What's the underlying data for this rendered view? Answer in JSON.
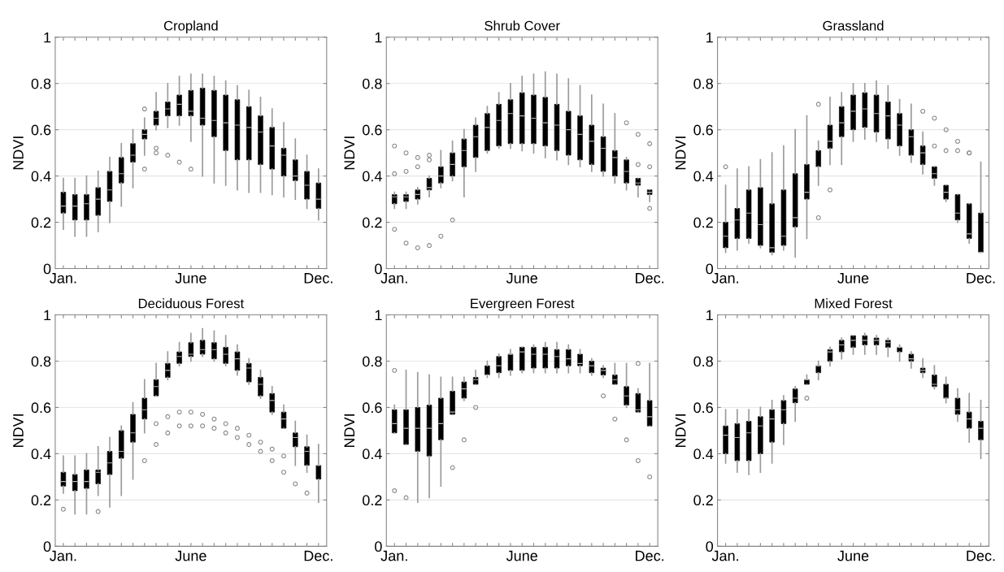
{
  "chart_data": [
    {
      "type": "box",
      "title": "Cropland",
      "ylabel": "NDVI",
      "categories": [
        "Jan.",
        null,
        null,
        null,
        null,
        null,
        null,
        null,
        null,
        null,
        null,
        "June",
        null,
        null,
        null,
        null,
        null,
        null,
        null,
        null,
        null,
        null,
        "Dec."
      ],
      "ylim": [
        0,
        1
      ],
      "yticks": [
        0,
        0.2,
        0.4,
        0.6,
        0.8,
        1
      ],
      "grid": "y",
      "boxes": [
        {
          "low": 0.17,
          "q1": 0.24,
          "median": 0.27,
          "q3": 0.33,
          "high": 0.39
        },
        {
          "low": 0.14,
          "q1": 0.21,
          "median": 0.27,
          "q3": 0.32,
          "high": 0.39
        },
        {
          "low": 0.14,
          "q1": 0.21,
          "median": 0.28,
          "q3": 0.32,
          "high": 0.4
        },
        {
          "low": 0.16,
          "q1": 0.23,
          "median": 0.3,
          "q3": 0.35,
          "high": 0.42
        },
        {
          "low": 0.2,
          "q1": 0.29,
          "median": 0.34,
          "q3": 0.42,
          "high": 0.48
        },
        {
          "low": 0.27,
          "q1": 0.37,
          "median": 0.41,
          "q3": 0.48,
          "high": 0.54
        },
        {
          "low": 0.35,
          "q1": 0.46,
          "median": 0.49,
          "q3": 0.54,
          "high": 0.6
        },
        {
          "low": 0.49,
          "q1": 0.56,
          "median": 0.58,
          "q3": 0.6,
          "high": 0.65,
          "outliers": [
            0.69,
            0.43
          ]
        },
        {
          "low": 0.6,
          "q1": 0.62,
          "median": 0.65,
          "q3": 0.68,
          "high": 0.76,
          "outliers": [
            0.52,
            0.5
          ]
        },
        {
          "low": 0.61,
          "q1": 0.66,
          "median": 0.69,
          "q3": 0.72,
          "high": 0.8,
          "outliers": [
            0.49
          ]
        },
        {
          "low": 0.62,
          "q1": 0.66,
          "median": 0.71,
          "q3": 0.75,
          "high": 0.83,
          "outliers": [
            0.46
          ]
        },
        {
          "low": 0.55,
          "q1": 0.66,
          "median": 0.68,
          "q3": 0.77,
          "high": 0.84,
          "outliers": [
            0.43
          ]
        },
        {
          "low": 0.4,
          "q1": 0.62,
          "median": 0.65,
          "q3": 0.78,
          "high": 0.84
        },
        {
          "low": 0.37,
          "q1": 0.57,
          "median": 0.64,
          "q3": 0.77,
          "high": 0.83
        },
        {
          "low": 0.36,
          "q1": 0.51,
          "median": 0.63,
          "q3": 0.75,
          "high": 0.81
        },
        {
          "low": 0.34,
          "q1": 0.47,
          "median": 0.62,
          "q3": 0.73,
          "high": 0.79
        },
        {
          "low": 0.33,
          "q1": 0.47,
          "median": 0.61,
          "q3": 0.7,
          "high": 0.77
        },
        {
          "low": 0.33,
          "q1": 0.45,
          "median": 0.59,
          "q3": 0.66,
          "high": 0.74
        },
        {
          "low": 0.32,
          "q1": 0.43,
          "median": 0.53,
          "q3": 0.61,
          "high": 0.69
        },
        {
          "low": 0.31,
          "q1": 0.4,
          "median": 0.49,
          "q3": 0.52,
          "high": 0.63
        },
        {
          "low": 0.3,
          "q1": 0.38,
          "median": 0.4,
          "q3": 0.47,
          "high": 0.56
        },
        {
          "low": 0.26,
          "q1": 0.3,
          "median": 0.36,
          "q3": 0.42,
          "high": 0.49
        },
        {
          "low": 0.21,
          "q1": 0.26,
          "median": 0.3,
          "q3": 0.37,
          "high": 0.43
        }
      ]
    },
    {
      "type": "box",
      "title": "Shrub Cover",
      "ylabel": "NDVI",
      "categories": [
        "Jan.",
        null,
        null,
        null,
        null,
        null,
        null,
        null,
        null,
        null,
        null,
        "June",
        null,
        null,
        null,
        null,
        null,
        null,
        null,
        null,
        null,
        null,
        "Dec."
      ],
      "ylim": [
        0,
        1
      ],
      "yticks": [
        0,
        0.2,
        0.4,
        0.6,
        0.8,
        1
      ],
      "grid": "y",
      "boxes": [
        {
          "low": 0.26,
          "q1": 0.28,
          "median": 0.31,
          "q3": 0.32,
          "high": 0.33,
          "outliers": [
            0.53,
            0.41,
            0.17
          ]
        },
        {
          "low": 0.26,
          "q1": 0.29,
          "median": 0.31,
          "q3": 0.32,
          "high": 0.33,
          "outliers": [
            0.5,
            0.42,
            0.11
          ]
        },
        {
          "low": 0.28,
          "q1": 0.3,
          "median": 0.32,
          "q3": 0.34,
          "high": 0.35,
          "outliers": [
            0.48,
            0.44,
            0.09
          ]
        },
        {
          "low": 0.31,
          "q1": 0.34,
          "median": 0.35,
          "q3": 0.39,
          "high": 0.4,
          "outliers": [
            0.49,
            0.47,
            0.1
          ]
        },
        {
          "low": 0.35,
          "q1": 0.37,
          "median": 0.4,
          "q3": 0.44,
          "high": 0.51,
          "outliers": [
            0.14
          ]
        },
        {
          "low": 0.38,
          "q1": 0.4,
          "median": 0.45,
          "q3": 0.5,
          "high": 0.55,
          "outliers": [
            0.21
          ]
        },
        {
          "low": 0.31,
          "q1": 0.44,
          "median": 0.51,
          "q3": 0.56,
          "high": 0.6
        },
        {
          "low": 0.42,
          "q1": 0.48,
          "median": 0.57,
          "q3": 0.62,
          "high": 0.65
        },
        {
          "low": 0.5,
          "q1": 0.51,
          "median": 0.61,
          "q3": 0.67,
          "high": 0.7
        },
        {
          "low": 0.52,
          "q1": 0.53,
          "median": 0.64,
          "q3": 0.71,
          "high": 0.76
        },
        {
          "low": 0.52,
          "q1": 0.54,
          "median": 0.67,
          "q3": 0.73,
          "high": 0.8
        },
        {
          "low": 0.51,
          "q1": 0.54,
          "median": 0.66,
          "q3": 0.76,
          "high": 0.83
        },
        {
          "low": 0.5,
          "q1": 0.54,
          "median": 0.65,
          "q3": 0.75,
          "high": 0.84
        },
        {
          "low": 0.48,
          "q1": 0.53,
          "median": 0.63,
          "q3": 0.74,
          "high": 0.85
        },
        {
          "low": 0.47,
          "q1": 0.51,
          "median": 0.62,
          "q3": 0.71,
          "high": 0.84
        },
        {
          "low": 0.45,
          "q1": 0.49,
          "median": 0.6,
          "q3": 0.68,
          "high": 0.82
        },
        {
          "low": 0.44,
          "q1": 0.47,
          "median": 0.58,
          "q3": 0.66,
          "high": 0.79
        },
        {
          "low": 0.42,
          "q1": 0.45,
          "median": 0.55,
          "q3": 0.62,
          "high": 0.75
        },
        {
          "low": 0.4,
          "q1": 0.42,
          "median": 0.52,
          "q3": 0.57,
          "high": 0.71
        },
        {
          "low": 0.37,
          "q1": 0.4,
          "median": 0.48,
          "q3": 0.51,
          "high": 0.67
        },
        {
          "low": 0.34,
          "q1": 0.37,
          "median": 0.42,
          "q3": 0.47,
          "high": 0.48,
          "outliers": [
            0.63
          ]
        },
        {
          "low": 0.31,
          "q1": 0.36,
          "median": 0.37,
          "q3": 0.39,
          "high": 0.39,
          "outliers": [
            0.58,
            0.45
          ]
        },
        {
          "low": 0.29,
          "q1": 0.32,
          "median": 0.33,
          "q3": 0.34,
          "high": 0.34,
          "outliers": [
            0.54,
            0.44,
            0.26
          ]
        }
      ]
    },
    {
      "type": "box",
      "title": "Grassland",
      "ylabel": "NDVI",
      "categories": [
        "Jan.",
        null,
        null,
        null,
        null,
        null,
        null,
        null,
        null,
        null,
        null,
        "June",
        null,
        null,
        null,
        null,
        null,
        null,
        null,
        null,
        null,
        null,
        "Dec."
      ],
      "ylim": [
        0,
        1
      ],
      "yticks": [
        0,
        0.2,
        0.4,
        0.6,
        0.8,
        1
      ],
      "grid": "y",
      "boxes": [
        {
          "low": 0.07,
          "q1": 0.09,
          "median": 0.14,
          "q3": 0.2,
          "high": 0.36,
          "outliers": [
            0.44
          ]
        },
        {
          "low": 0.08,
          "q1": 0.13,
          "median": 0.21,
          "q3": 0.26,
          "high": 0.43
        },
        {
          "low": 0.11,
          "q1": 0.13,
          "median": 0.24,
          "q3": 0.34,
          "high": 0.44
        },
        {
          "low": 0.09,
          "q1": 0.1,
          "median": 0.19,
          "q3": 0.35,
          "high": 0.47
        },
        {
          "low": 0.06,
          "q1": 0.07,
          "median": 0.09,
          "q3": 0.28,
          "high": 0.5
        },
        {
          "low": 0.08,
          "q1": 0.1,
          "median": 0.14,
          "q3": 0.34,
          "high": 0.53
        },
        {
          "low": 0.05,
          "q1": 0.18,
          "median": 0.22,
          "q3": 0.41,
          "high": 0.6
        },
        {
          "low": 0.13,
          "q1": 0.3,
          "median": 0.33,
          "q3": 0.45,
          "high": 0.66
        },
        {
          "low": 0.36,
          "q1": 0.44,
          "median": 0.44,
          "q3": 0.51,
          "high": 0.55,
          "outliers": [
            0.71,
            0.22
          ]
        },
        {
          "low": 0.45,
          "q1": 0.52,
          "median": 0.55,
          "q3": 0.62,
          "high": 0.74,
          "outliers": [
            0.34
          ]
        },
        {
          "low": 0.45,
          "q1": 0.57,
          "median": 0.63,
          "q3": 0.7,
          "high": 0.76
        },
        {
          "low": 0.55,
          "q1": 0.6,
          "median": 0.68,
          "q3": 0.75,
          "high": 0.8
        },
        {
          "low": 0.56,
          "q1": 0.61,
          "median": 0.69,
          "q3": 0.76,
          "high": 0.8
        },
        {
          "low": 0.55,
          "q1": 0.59,
          "median": 0.67,
          "q3": 0.75,
          "high": 0.81
        },
        {
          "low": 0.52,
          "q1": 0.56,
          "median": 0.66,
          "q3": 0.72,
          "high": 0.79
        },
        {
          "low": 0.49,
          "q1": 0.53,
          "median": 0.62,
          "q3": 0.67,
          "high": 0.73
        },
        {
          "low": 0.46,
          "q1": 0.49,
          "median": 0.57,
          "q3": 0.6,
          "high": 0.71
        },
        {
          "low": 0.41,
          "q1": 0.45,
          "median": 0.5,
          "q3": 0.53,
          "high": 0.59,
          "outliers": [
            0.68
          ]
        },
        {
          "low": 0.36,
          "q1": 0.39,
          "median": 0.41,
          "q3": 0.44,
          "high": 0.44,
          "outliers": [
            0.65,
            0.53
          ]
        },
        {
          "low": 0.29,
          "q1": 0.3,
          "median": 0.33,
          "q3": 0.36,
          "high": 0.36,
          "outliers": [
            0.6,
            0.51
          ]
        },
        {
          "low": 0.2,
          "q1": 0.21,
          "median": 0.24,
          "q3": 0.32,
          "high": 0.32,
          "outliers": [
            0.55,
            0.51
          ]
        },
        {
          "low": 0.11,
          "q1": 0.13,
          "median": 0.15,
          "q3": 0.28,
          "high": 0.28,
          "outliers": [
            0.5,
            0.5
          ]
        },
        {
          "low": 0.07,
          "q1": 0.07,
          "median": 0.07,
          "q3": 0.24,
          "high": 0.46
        }
      ]
    },
    {
      "type": "box",
      "title": "Deciduous Forest",
      "ylabel": "NDVI",
      "categories": [
        "Jan.",
        null,
        null,
        null,
        null,
        null,
        null,
        null,
        null,
        null,
        null,
        "June",
        null,
        null,
        null,
        null,
        null,
        null,
        null,
        null,
        null,
        null,
        "Dec."
      ],
      "ylim": [
        0,
        1
      ],
      "yticks": [
        0,
        0.2,
        0.4,
        0.6,
        0.8,
        1
      ],
      "grid": "y",
      "boxes": [
        {
          "low": 0.23,
          "q1": 0.26,
          "median": 0.28,
          "q3": 0.32,
          "high": 0.39,
          "outliers": [
            0.16
          ]
        },
        {
          "low": 0.14,
          "q1": 0.24,
          "median": 0.28,
          "q3": 0.31,
          "high": 0.39
        },
        {
          "low": 0.14,
          "q1": 0.25,
          "median": 0.28,
          "q3": 0.33,
          "high": 0.4
        },
        {
          "low": 0.22,
          "q1": 0.27,
          "median": 0.32,
          "q3": 0.33,
          "high": 0.43,
          "outliers": [
            0.15
          ]
        },
        {
          "low": 0.17,
          "q1": 0.31,
          "median": 0.36,
          "q3": 0.41,
          "high": 0.47
        },
        {
          "low": 0.22,
          "q1": 0.38,
          "median": 0.41,
          "q3": 0.5,
          "high": 0.52
        },
        {
          "low": 0.29,
          "q1": 0.45,
          "median": 0.49,
          "q3": 0.57,
          "high": 0.62
        },
        {
          "low": 0.49,
          "q1": 0.55,
          "median": 0.59,
          "q3": 0.64,
          "high": 0.72,
          "outliers": [
            0.37
          ]
        },
        {
          "low": 0.65,
          "q1": 0.65,
          "median": 0.69,
          "q3": 0.72,
          "high": 0.79,
          "outliers": [
            0.53,
            0.44
          ]
        },
        {
          "low": 0.72,
          "q1": 0.73,
          "median": 0.76,
          "q3": 0.79,
          "high": 0.84,
          "outliers": [
            0.56,
            0.49
          ]
        },
        {
          "low": 0.78,
          "q1": 0.79,
          "median": 0.82,
          "q3": 0.84,
          "high": 0.88,
          "outliers": [
            0.58,
            0.52
          ]
        },
        {
          "low": 0.8,
          "q1": 0.82,
          "median": 0.83,
          "q3": 0.88,
          "high": 0.92,
          "outliers": [
            0.58,
            0.52
          ]
        },
        {
          "low": 0.82,
          "q1": 0.83,
          "median": 0.85,
          "q3": 0.89,
          "high": 0.94,
          "outliers": [
            0.57,
            0.52
          ]
        },
        {
          "low": 0.8,
          "q1": 0.81,
          "median": 0.85,
          "q3": 0.88,
          "high": 0.93,
          "outliers": [
            0.55,
            0.51
          ]
        },
        {
          "low": 0.78,
          "q1": 0.79,
          "median": 0.83,
          "q3": 0.86,
          "high": 0.91,
          "outliers": [
            0.53,
            0.49
          ]
        },
        {
          "low": 0.74,
          "q1": 0.76,
          "median": 0.81,
          "q3": 0.84,
          "high": 0.87,
          "outliers": [
            0.51,
            0.47
          ]
        },
        {
          "low": 0.7,
          "q1": 0.71,
          "median": 0.77,
          "q3": 0.79,
          "high": 0.81,
          "outliers": [
            0.48,
            0.44
          ]
        },
        {
          "low": 0.64,
          "q1": 0.65,
          "median": 0.7,
          "q3": 0.73,
          "high": 0.76,
          "outliers": [
            0.45,
            0.41
          ]
        },
        {
          "low": 0.57,
          "q1": 0.58,
          "median": 0.63,
          "q3": 0.66,
          "high": 0.69,
          "outliers": [
            0.42,
            0.37
          ]
        },
        {
          "low": 0.51,
          "q1": 0.51,
          "median": 0.55,
          "q3": 0.58,
          "high": 0.61,
          "outliers": [
            0.39,
            0.32
          ]
        },
        {
          "low": 0.35,
          "q1": 0.43,
          "median": 0.47,
          "q3": 0.49,
          "high": 0.54,
          "outliers": [
            0.27
          ]
        },
        {
          "low": 0.32,
          "q1": 0.35,
          "median": 0.41,
          "q3": 0.43,
          "high": 0.48,
          "outliers": [
            0.23
          ]
        },
        {
          "low": 0.19,
          "q1": 0.29,
          "median": 0.35,
          "q3": 0.35,
          "high": 0.44
        }
      ]
    },
    {
      "type": "box",
      "title": "Evergreen Forest",
      "ylabel": "NDVI",
      "categories": [
        "Jan.",
        null,
        null,
        null,
        null,
        null,
        null,
        null,
        null,
        null,
        null,
        "June",
        null,
        null,
        null,
        null,
        null,
        null,
        null,
        null,
        null,
        null,
        "Dec."
      ],
      "ylim": [
        0,
        1
      ],
      "yticks": [
        0,
        0.2,
        0.4,
        0.6,
        0.8,
        1
      ],
      "grid": "y",
      "boxes": [
        {
          "low": 0.49,
          "q1": 0.49,
          "median": 0.53,
          "q3": 0.59,
          "high": 0.61,
          "outliers": [
            0.76,
            0.24
          ]
        },
        {
          "low": 0.44,
          "q1": 0.44,
          "median": 0.51,
          "q3": 0.59,
          "high": 0.76,
          "outliers": [
            0.21
          ]
        },
        {
          "low": 0.19,
          "q1": 0.41,
          "median": 0.51,
          "q3": 0.6,
          "high": 0.75
        },
        {
          "low": 0.21,
          "q1": 0.39,
          "median": 0.51,
          "q3": 0.61,
          "high": 0.74
        },
        {
          "low": 0.26,
          "q1": 0.46,
          "median": 0.53,
          "q3": 0.64,
          "high": 0.73
        },
        {
          "low": 0.57,
          "q1": 0.57,
          "median": 0.58,
          "q3": 0.67,
          "high": 0.73,
          "outliers": [
            0.34
          ]
        },
        {
          "low": 0.63,
          "q1": 0.64,
          "median": 0.68,
          "q3": 0.71,
          "high": 0.73,
          "outliers": [
            0.46
          ]
        },
        {
          "low": 0.7,
          "q1": 0.7,
          "median": 0.72,
          "q3": 0.73,
          "high": 0.76,
          "outliers": [
            0.6
          ]
        },
        {
          "low": 0.73,
          "q1": 0.74,
          "median": 0.74,
          "q3": 0.78,
          "high": 0.8
        },
        {
          "low": 0.73,
          "q1": 0.75,
          "median": 0.78,
          "q3": 0.82,
          "high": 0.83
        },
        {
          "low": 0.74,
          "q1": 0.76,
          "median": 0.83,
          "q3": 0.83,
          "high": 0.85
        },
        {
          "low": 0.75,
          "q1": 0.76,
          "median": 0.84,
          "q3": 0.86,
          "high": 0.86
        },
        {
          "low": 0.75,
          "q1": 0.77,
          "median": 0.83,
          "q3": 0.86,
          "high": 0.87
        },
        {
          "low": 0.75,
          "q1": 0.77,
          "median": 0.83,
          "q3": 0.86,
          "high": 0.88
        },
        {
          "low": 0.75,
          "q1": 0.77,
          "median": 0.82,
          "q3": 0.85,
          "high": 0.88
        },
        {
          "low": 0.75,
          "q1": 0.78,
          "median": 0.81,
          "q3": 0.85,
          "high": 0.87
        },
        {
          "low": 0.75,
          "q1": 0.78,
          "median": 0.79,
          "q3": 0.83,
          "high": 0.85
        },
        {
          "low": 0.74,
          "q1": 0.75,
          "median": 0.78,
          "q3": 0.8,
          "high": 0.81
        },
        {
          "low": 0.73,
          "q1": 0.74,
          "median": 0.76,
          "q3": 0.77,
          "high": 0.78,
          "outliers": [
            0.65
          ]
        },
        {
          "low": 0.7,
          "q1": 0.7,
          "median": 0.72,
          "q3": 0.74,
          "high": 0.79,
          "outliers": [
            0.55
          ]
        },
        {
          "low": 0.6,
          "q1": 0.61,
          "median": 0.65,
          "q3": 0.69,
          "high": 0.79,
          "outliers": [
            0.46
          ]
        },
        {
          "low": 0.58,
          "q1": 0.58,
          "median": 0.59,
          "q3": 0.66,
          "high": 0.68,
          "outliers": [
            0.79,
            0.37
          ]
        },
        {
          "low": 0.52,
          "q1": 0.52,
          "median": 0.56,
          "q3": 0.63,
          "high": 0.79,
          "outliers": [
            0.3
          ]
        }
      ]
    },
    {
      "type": "box",
      "title": "Mixed Forest",
      "ylabel": "NDVI",
      "categories": [
        "Jan.",
        null,
        null,
        null,
        null,
        null,
        null,
        null,
        null,
        null,
        null,
        "June",
        null,
        null,
        null,
        null,
        null,
        null,
        null,
        null,
        null,
        null,
        "Dec."
      ],
      "ylim": [
        0,
        1
      ],
      "yticks": [
        0,
        0.2,
        0.4,
        0.6,
        0.8,
        1
      ],
      "grid": "y",
      "boxes": [
        {
          "low": 0.36,
          "q1": 0.4,
          "median": 0.48,
          "q3": 0.52,
          "high": 0.59
        },
        {
          "low": 0.32,
          "q1": 0.37,
          "median": 0.47,
          "q3": 0.53,
          "high": 0.59
        },
        {
          "low": 0.31,
          "q1": 0.37,
          "median": 0.49,
          "q3": 0.54,
          "high": 0.59
        },
        {
          "low": 0.32,
          "q1": 0.4,
          "median": 0.52,
          "q3": 0.56,
          "high": 0.6
        },
        {
          "low": 0.36,
          "q1": 0.45,
          "median": 0.55,
          "q3": 0.59,
          "high": 0.63
        },
        {
          "low": 0.44,
          "q1": 0.53,
          "median": 0.59,
          "q3": 0.63,
          "high": 0.65
        },
        {
          "low": 0.54,
          "q1": 0.62,
          "median": 0.64,
          "q3": 0.68,
          "high": 0.69
        },
        {
          "low": 0.7,
          "q1": 0.7,
          "median": 0.72,
          "q3": 0.72,
          "high": 0.74,
          "outliers": [
            0.64
          ]
        },
        {
          "low": 0.72,
          "q1": 0.75,
          "median": 0.78,
          "q3": 0.78,
          "high": 0.8
        },
        {
          "low": 0.78,
          "q1": 0.8,
          "median": 0.84,
          "q3": 0.85,
          "high": 0.86
        },
        {
          "low": 0.81,
          "q1": 0.84,
          "median": 0.87,
          "q3": 0.89,
          "high": 0.9
        },
        {
          "low": 0.83,
          "q1": 0.86,
          "median": 0.89,
          "q3": 0.91,
          "high": 0.91
        },
        {
          "low": 0.83,
          "q1": 0.87,
          "median": 0.89,
          "q3": 0.91,
          "high": 0.92
        },
        {
          "low": 0.83,
          "q1": 0.87,
          "median": 0.89,
          "q3": 0.9,
          "high": 0.91
        },
        {
          "low": 0.82,
          "q1": 0.86,
          "median": 0.88,
          "q3": 0.89,
          "high": 0.9
        },
        {
          "low": 0.8,
          "q1": 0.84,
          "median": 0.86,
          "q3": 0.86,
          "high": 0.87
        },
        {
          "low": 0.77,
          "q1": 0.8,
          "median": 0.81,
          "q3": 0.83,
          "high": 0.84
        },
        {
          "low": 0.73,
          "q1": 0.75,
          "median": 0.76,
          "q3": 0.77,
          "high": 0.81
        },
        {
          "low": 0.68,
          "q1": 0.69,
          "median": 0.7,
          "q3": 0.74,
          "high": 0.78
        },
        {
          "low": 0.62,
          "q1": 0.64,
          "median": 0.64,
          "q3": 0.7,
          "high": 0.73
        },
        {
          "low": 0.54,
          "q1": 0.57,
          "median": 0.59,
          "q3": 0.64,
          "high": 0.68
        },
        {
          "low": 0.45,
          "q1": 0.51,
          "median": 0.55,
          "q3": 0.58,
          "high": 0.66
        },
        {
          "low": 0.38,
          "q1": 0.46,
          "median": 0.51,
          "q3": 0.54,
          "high": 0.63
        }
      ]
    }
  ]
}
